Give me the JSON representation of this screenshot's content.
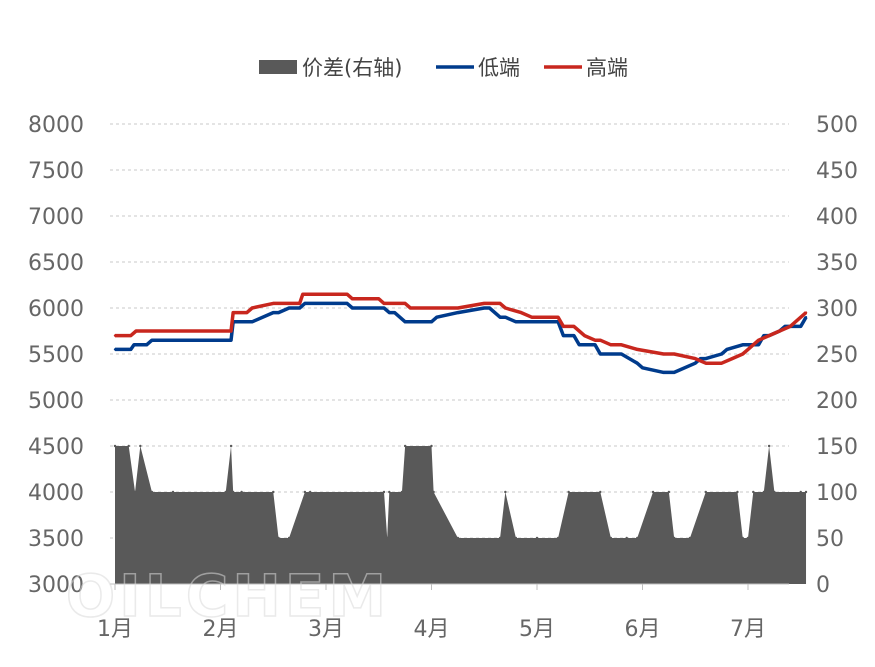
{
  "watermark": "OILCHEM",
  "chart_data": {
    "type": "line",
    "title": "",
    "legend_position": "top",
    "grid": "horizontal-dashed",
    "x_ticks": [
      "1月",
      "2月",
      "3月",
      "4月",
      "5月",
      "6月",
      "7月"
    ],
    "x_range": [
      0,
      6.7
    ],
    "ylim_left": [
      3000,
      8000
    ],
    "ylim_right": [
      0,
      500
    ],
    "y_ticks_left": [
      3000,
      3500,
      4000,
      4500,
      5000,
      5500,
      6000,
      6500,
      7000,
      7500,
      8000
    ],
    "y_ticks_right": [
      0,
      50,
      100,
      150,
      200,
      250,
      300,
      350,
      400,
      450,
      500
    ],
    "series": [
      {
        "name": "价差(右轴)",
        "kind": "area",
        "axis": "right",
        "color": "#595959",
        "x": [
          0.0,
          0.13,
          0.19,
          0.24,
          0.35,
          0.55,
          1.05,
          1.1,
          1.12,
          1.2,
          1.5,
          1.55,
          1.65,
          1.8,
          1.85,
          2.55,
          2.58,
          2.6,
          2.72,
          2.75,
          3.0,
          3.02,
          3.25,
          3.65,
          3.7,
          3.8,
          4.0,
          4.2,
          4.3,
          4.6,
          4.7,
          4.85,
          4.95,
          5.1,
          5.25,
          5.3,
          5.45,
          5.6,
          5.9,
          5.95,
          6.0,
          6.05,
          6.15,
          6.2,
          6.25,
          6.5,
          6.55
        ],
        "values": [
          150,
          150,
          100,
          150,
          100,
          100,
          100,
          150,
          100,
          100,
          100,
          50,
          50,
          100,
          100,
          100,
          50,
          100,
          100,
          150,
          150,
          100,
          50,
          50,
          100,
          50,
          50,
          50,
          100,
          100,
          50,
          50,
          50,
          100,
          100,
          50,
          50,
          100,
          100,
          50,
          50,
          100,
          100,
          150,
          100,
          100,
          100
        ]
      },
      {
        "name": "低端",
        "kind": "line",
        "axis": "left",
        "color": "#003B8C",
        "x": [
          0.0,
          0.15,
          0.18,
          0.3,
          0.35,
          0.6,
          1.0,
          1.1,
          1.12,
          1.3,
          1.5,
          1.55,
          1.65,
          1.75,
          1.8,
          2.2,
          2.25,
          2.55,
          2.6,
          2.65,
          2.75,
          3.0,
          3.05,
          3.25,
          3.5,
          3.55,
          3.65,
          3.7,
          3.8,
          3.9,
          4.0,
          4.2,
          4.25,
          4.35,
          4.4,
          4.55,
          4.6,
          4.7,
          4.8,
          4.95,
          5.0,
          5.2,
          5.3,
          5.5,
          5.55,
          5.6,
          5.75,
          5.8,
          5.95,
          6.0,
          6.1,
          6.15,
          6.2,
          6.3,
          6.35,
          6.45,
          6.5,
          6.55
        ],
        "values": [
          5550,
          5550,
          5600,
          5600,
          5650,
          5650,
          5650,
          5650,
          5850,
          5850,
          5950,
          5950,
          6000,
          6000,
          6050,
          6050,
          6000,
          6000,
          5950,
          5950,
          5850,
          5850,
          5900,
          5950,
          6000,
          6000,
          5900,
          5900,
          5850,
          5850,
          5850,
          5850,
          5700,
          5700,
          5600,
          5600,
          5500,
          5500,
          5500,
          5400,
          5350,
          5300,
          5300,
          5400,
          5450,
          5450,
          5500,
          5550,
          5600,
          5600,
          5600,
          5700,
          5700,
          5750,
          5800,
          5800,
          5800,
          5900
        ]
      },
      {
        "name": "高端",
        "kind": "line",
        "axis": "left",
        "color": "#C8271E",
        "x": [
          0.0,
          0.15,
          0.2,
          0.6,
          1.0,
          1.1,
          1.12,
          1.25,
          1.3,
          1.5,
          1.55,
          1.65,
          1.75,
          1.78,
          2.2,
          2.25,
          2.5,
          2.55,
          2.75,
          2.8,
          3.0,
          3.05,
          3.25,
          3.5,
          3.55,
          3.65,
          3.7,
          3.85,
          3.95,
          4.0,
          4.2,
          4.25,
          4.35,
          4.4,
          4.45,
          4.55,
          4.6,
          4.7,
          4.8,
          4.95,
          5.2,
          5.3,
          5.5,
          5.6,
          5.65,
          5.75,
          5.85,
          5.95,
          6.0,
          6.1,
          6.2,
          6.3,
          6.4,
          6.5,
          6.55
        ],
        "values": [
          5700,
          5700,
          5750,
          5750,
          5750,
          5750,
          5950,
          5950,
          6000,
          6050,
          6050,
          6050,
          6050,
          6150,
          6150,
          6100,
          6100,
          6050,
          6050,
          6000,
          6000,
          6000,
          6000,
          6050,
          6050,
          6050,
          6000,
          5950,
          5900,
          5900,
          5900,
          5800,
          5800,
          5750,
          5700,
          5650,
          5650,
          5600,
          5600,
          5550,
          5500,
          5500,
          5450,
          5400,
          5400,
          5400,
          5450,
          5500,
          5550,
          5650,
          5700,
          5750,
          5800,
          5900,
          5950
        ]
      }
    ]
  }
}
